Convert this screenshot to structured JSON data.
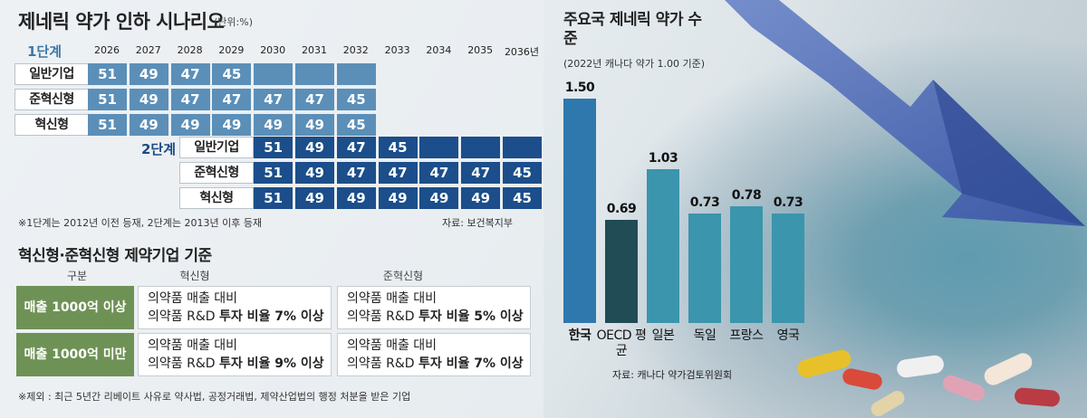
{
  "colors": {
    "stage1_cell": "#5b8fb8",
    "stage2_cell": "#1b4e8a",
    "criteria_label": "#6e9255",
    "bar_korea": "#2f78ad",
    "bar_oecd": "#214b55",
    "bar_others": "#3a95ad"
  },
  "scenario": {
    "title": "제네릭 약가 인하 시나리오",
    "unit": "(단위:%)",
    "years": [
      "2026",
      "2027",
      "2028",
      "2029",
      "2030",
      "2031",
      "2032",
      "2033",
      "2034",
      "2035",
      "2036년"
    ],
    "stage1": {
      "label": "1단계",
      "rows": [
        {
          "name": "일반기업",
          "values": [
            "51",
            "49",
            "47",
            "45",
            "",
            "",
            ""
          ]
        },
        {
          "name": "준혁신형",
          "values": [
            "51",
            "49",
            "47",
            "47",
            "47",
            "47",
            "45"
          ]
        },
        {
          "name": "혁신형",
          "values": [
            "51",
            "49",
            "49",
            "49",
            "49",
            "49",
            "45"
          ]
        }
      ]
    },
    "stage2": {
      "label": "2단계",
      "rows": [
        {
          "name": "일반기업",
          "values": [
            "51",
            "49",
            "47",
            "45",
            "",
            "",
            ""
          ]
        },
        {
          "name": "준혁신형",
          "values": [
            "51",
            "49",
            "47",
            "47",
            "47",
            "47",
            "45"
          ]
        },
        {
          "name": "혁신형",
          "values": [
            "51",
            "49",
            "49",
            "49",
            "49",
            "49",
            "45"
          ]
        }
      ]
    },
    "note": "※1단계는 2012년 이전 등재, 2단계는 2013년 이후 등재",
    "source": "자료: 보건복지부"
  },
  "criteria": {
    "title": "혁신형·준혁신형 제약기업 기준",
    "headers": {
      "category": "구분",
      "innovative": "혁신형",
      "semi": "준혁신형"
    },
    "rows": [
      {
        "label": "매출 1000억 이상",
        "innovative_line1": "의약품 매출 대비",
        "innovative_line2_pre": "의약품 R&D ",
        "innovative_line2_bold": "투자 비율 7% 이상",
        "semi_line1": "의약품 매출 대비",
        "semi_line2_pre": "의약품 R&D ",
        "semi_line2_bold": "투자 비율 5% 이상"
      },
      {
        "label": "매출 1000억 미만",
        "innovative_line1": "의약품 매출 대비",
        "innovative_line2_pre": "의약품 R&D ",
        "innovative_line2_bold": "투자 비율 9% 이상",
        "semi_line1": "의약품 매출 대비",
        "semi_line2_pre": "의약품 R&D ",
        "semi_line2_bold": "투자 비율 7% 이상"
      }
    ],
    "note": "※제외 : 최근 5년간 리베이트 사유로  약사법, 공정거래법, 제약산업법의 행정 처분을 받은 기업"
  },
  "chart_data": {
    "type": "bar",
    "title": "주요국 제네릭 약가 수준",
    "subtitle": "(2022년 캐나다 약가 1.00 기준)",
    "categories": [
      "한국",
      "OECD 평균",
      "일본",
      "독일",
      "프랑스",
      "영국"
    ],
    "values": [
      1.5,
      0.69,
      1.03,
      0.73,
      0.78,
      0.73
    ],
    "value_labels": [
      "1.50",
      "0.69",
      "1.03",
      "0.73",
      "0.78",
      "0.73"
    ],
    "ylim": [
      0,
      1.6
    ],
    "grid": false,
    "legend": "none",
    "source": "자료: 캐나다 약가검토위원회"
  }
}
